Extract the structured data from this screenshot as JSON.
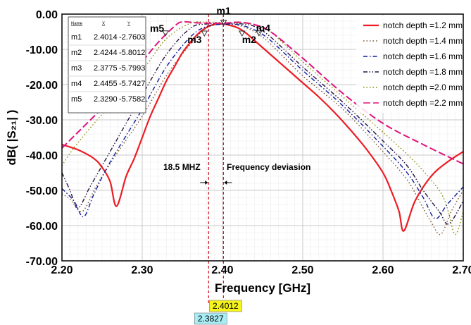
{
  "chart_data": {
    "type": "line",
    "xlabel": "Frequency [GHz]",
    "ylabel": "dB( |S₂₁| )",
    "xlim": [
      2.2,
      2.7
    ],
    "ylim": [
      -70,
      0
    ],
    "x_ticks": [
      "2.20",
      "2.30",
      "2.40",
      "2.50",
      "2.60",
      "2.70"
    ],
    "y_ticks": [
      "0.00",
      "-10.00",
      "-20.00",
      "-30.00",
      "-40.00",
      "-50.00",
      "-60.00",
      "-70.00"
    ],
    "grid": true,
    "legend_position": "top-right",
    "series": [
      {
        "name": "notch depth =1.2 mm",
        "color": "#ee1c24",
        "dash": "solid",
        "x": [
          2.2,
          2.22,
          2.24,
          2.25,
          2.26,
          2.268,
          2.28,
          2.29,
          2.3,
          2.31,
          2.32,
          2.33,
          2.34,
          2.35,
          2.36,
          2.37,
          2.38,
          2.39,
          2.4,
          2.41,
          2.42,
          2.43,
          2.44,
          2.45,
          2.46,
          2.47,
          2.48,
          2.5,
          2.52,
          2.54,
          2.56,
          2.58,
          2.6,
          2.61,
          2.62,
          2.626,
          2.64,
          2.66,
          2.68,
          2.7
        ],
        "y": [
          -37,
          -38.5,
          -41,
          -43.5,
          -47.5,
          -54.5,
          -46,
          -41,
          -35,
          -29,
          -24,
          -19,
          -15,
          -11,
          -8,
          -5.5,
          -3.8,
          -2.9,
          -2.8,
          -3.2,
          -4,
          -5.5,
          -7.5,
          -9.5,
          -11.5,
          -13.5,
          -15.5,
          -19.5,
          -23.5,
          -28,
          -33,
          -38.5,
          -45,
          -50,
          -56,
          -61.5,
          -53,
          -46,
          -42,
          -39
        ]
      },
      {
        "name": "notch depth =1.4 mm",
        "color": "#7a5230",
        "dash": "dot",
        "x": [
          2.2,
          2.21,
          2.225,
          2.24,
          2.25,
          2.27,
          2.3,
          2.33,
          2.36,
          2.38,
          2.4,
          2.42,
          2.44,
          2.46,
          2.5,
          2.55,
          2.6,
          2.63,
          2.65,
          2.66,
          2.672,
          2.685,
          2.7
        ],
        "y": [
          -51,
          -52.5,
          -56,
          -50,
          -46,
          -39,
          -29,
          -17.5,
          -8.5,
          -4,
          -2.8,
          -3.2,
          -5,
          -8.5,
          -17.5,
          -27,
          -39,
          -47,
          -55,
          -59,
          -62.5,
          -56,
          -50
        ]
      },
      {
        "name": "notch depth =1.6 mm",
        "color": "#0e1a9e",
        "dash": "dashdot",
        "x": [
          2.2,
          2.215,
          2.227,
          2.24,
          2.26,
          2.3,
          2.33,
          2.36,
          2.38,
          2.4,
          2.42,
          2.44,
          2.46,
          2.5,
          2.55,
          2.6,
          2.63,
          2.65,
          2.665,
          2.68,
          2.7
        ],
        "y": [
          -49.5,
          -53,
          -57.5,
          -51,
          -42,
          -27,
          -15,
          -6.5,
          -3.5,
          -2.9,
          -3,
          -4.5,
          -7.5,
          -16,
          -26,
          -37.5,
          -45,
          -52,
          -58,
          -54,
          -49
        ]
      },
      {
        "name": "notch depth =1.8 mm",
        "color": "#2a1540",
        "dash": "dashdotdot",
        "x": [
          2.2,
          2.21,
          2.22,
          2.235,
          2.26,
          2.3,
          2.33,
          2.36,
          2.38,
          2.4,
          2.42,
          2.44,
          2.46,
          2.5,
          2.55,
          2.6,
          2.63,
          2.65,
          2.67,
          2.682,
          2.7
        ],
        "y": [
          -45,
          -50,
          -55,
          -49,
          -39,
          -23,
          -11.5,
          -4,
          -2.8,
          -2.6,
          -2.7,
          -3.5,
          -6.5,
          -15,
          -25,
          -36,
          -43,
          -50,
          -56,
          -59.5,
          -53
        ]
      },
      {
        "name": "notch depth =2.0 mm",
        "color": "#8a8a00",
        "dash": "dot",
        "x": [
          2.2,
          2.21,
          2.22,
          2.24,
          2.26,
          2.3,
          2.33,
          2.36,
          2.38,
          2.4,
          2.42,
          2.44,
          2.46,
          2.5,
          2.55,
          2.6,
          2.64,
          2.67,
          2.68,
          2.69,
          2.7
        ],
        "y": [
          -43,
          -39.5,
          -36.5,
          -31,
          -26,
          -16,
          -7,
          -2.6,
          -2.3,
          -2.4,
          -2.5,
          -3,
          -5,
          -13.5,
          -23.5,
          -33.5,
          -42,
          -50,
          -55,
          -62.5,
          -56
        ]
      },
      {
        "name": "notch depth =2.2 mm",
        "color": "#e0137d",
        "dash": "longdash",
        "x": [
          2.2,
          2.22,
          2.24,
          2.26,
          2.28,
          2.3,
          2.32,
          2.34,
          2.35,
          2.37,
          2.4,
          2.42,
          2.44,
          2.46,
          2.5,
          2.55,
          2.6,
          2.65,
          2.7
        ],
        "y": [
          -38,
          -33.5,
          -29,
          -24.5,
          -19,
          -13.5,
          -8,
          -3.5,
          -2.2,
          -2.5,
          -2.6,
          -2.3,
          -3,
          -5,
          -12.5,
          -22.5,
          -31,
          -37,
          -42.5
        ]
      }
    ],
    "markers": [
      {
        "name": "m1",
        "x": 2.4014,
        "y": -2.7603
      },
      {
        "name": "m2",
        "x": 2.4244,
        "y": -5.8012
      },
      {
        "name": "m3",
        "x": 2.3775,
        "y": -5.7993
      },
      {
        "name": "m4",
        "x": 2.4455,
        "y": -5.7427
      },
      {
        "name": "m5",
        "x": 2.329,
        "y": -5.7582
      }
    ],
    "marker_table": {
      "headers": [
        "Name",
        "X",
        "Y"
      ],
      "rows": [
        [
          "m1",
          "2.4014",
          "-2.7603"
        ],
        [
          "m2",
          "2.4244",
          "-5.8012"
        ],
        [
          "m3",
          "2.3775",
          "-5.7993"
        ],
        [
          "m4",
          "2.4455",
          "-5.7427"
        ],
        [
          "m5",
          "2.3290",
          "-5.7582"
        ]
      ]
    },
    "cursors": [
      {
        "x": 2.3827,
        "label": "2.3827",
        "bg": "#a8ecf4"
      },
      {
        "x": 2.4012,
        "label": "2.4012",
        "bg": "#f6f41a"
      }
    ],
    "annotations": {
      "bandwidth": "18.5 MHZ",
      "deviation": "Frequency deviasion"
    }
  }
}
